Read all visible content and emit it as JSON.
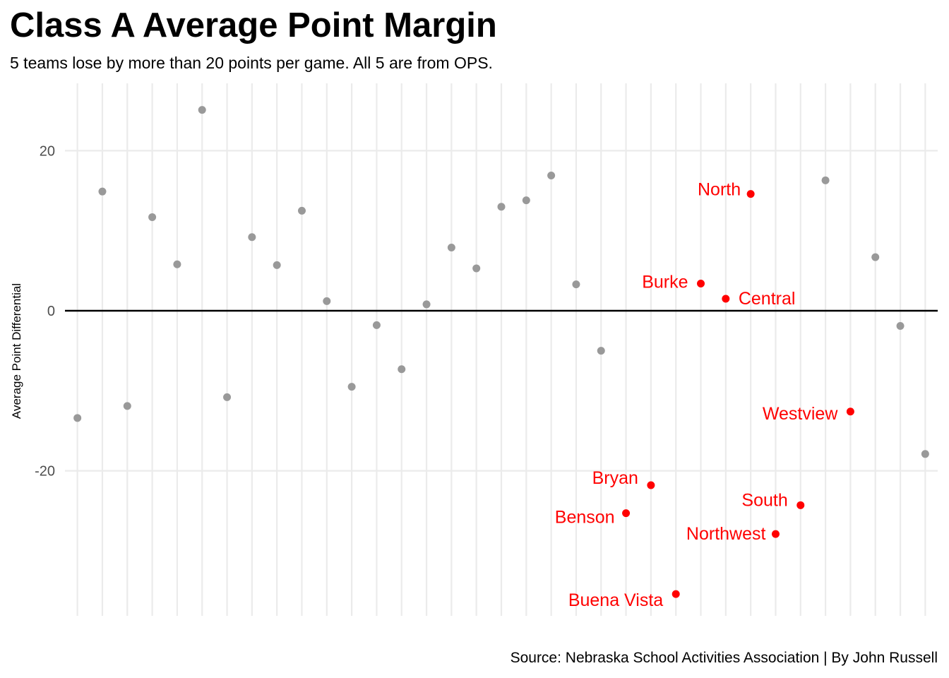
{
  "chart_data": {
    "type": "scatter",
    "title": "Class A Average Point Margin",
    "subtitle": "5 teams lose by more than 20 points per game. All 5 are from OPS.",
    "caption": "Source: Nebraska School Activities Association | By John Russell",
    "xlabel": "",
    "ylabel": "Average Point Differential",
    "ylim": [
      -38,
      28
    ],
    "yticks": [
      20,
      0,
      -20
    ],
    "ytick_labels": [
      "20",
      "0",
      "-20"
    ],
    "grid": true,
    "zero_line": true,
    "colors": {
      "default": "#999999",
      "highlight": "#ff0000",
      "zero_line": "#000000",
      "grid": "#ebebeb"
    },
    "series": [
      {
        "x": [
          1,
          2,
          3,
          4,
          5,
          6,
          7,
          8,
          9,
          10,
          11,
          12,
          13,
          14,
          15,
          16,
          17,
          18,
          19,
          20,
          21,
          22,
          23,
          24,
          25,
          26,
          27,
          28,
          29,
          30,
          31,
          32,
          33,
          34,
          35
        ],
        "values": [
          -13.4,
          14.9,
          -11.9,
          11.7,
          5.8,
          25.1,
          -10.8,
          9.2,
          5.7,
          12.5,
          1.2,
          -9.5,
          -1.8,
          -7.3,
          0.8,
          7.9,
          5.3,
          13.0,
          13.8,
          16.9,
          3.3,
          -5.0,
          -25.3,
          -21.8,
          -35.4,
          3.4,
          1.5,
          14.6,
          -27.9,
          -24.3,
          16.3,
          -12.6,
          6.7,
          -1.9,
          -17.9
        ],
        "highlight": [
          false,
          false,
          false,
          false,
          false,
          false,
          false,
          false,
          false,
          false,
          false,
          false,
          false,
          false,
          false,
          false,
          false,
          false,
          false,
          false,
          false,
          false,
          true,
          true,
          true,
          true,
          true,
          true,
          true,
          true,
          false,
          true,
          false,
          false,
          false
        ],
        "labels": [
          "",
          "",
          "",
          "",
          "",
          "",
          "",
          "",
          "",
          "",
          "",
          "",
          "",
          "",
          "",
          "",
          "",
          "",
          "",
          "",
          "",
          "",
          "Benson",
          "Bryan",
          "Buena Vista",
          "Burke",
          "Central",
          "North",
          "Northwest",
          "South",
          "",
          "Westview",
          "",
          "",
          ""
        ]
      }
    ]
  }
}
